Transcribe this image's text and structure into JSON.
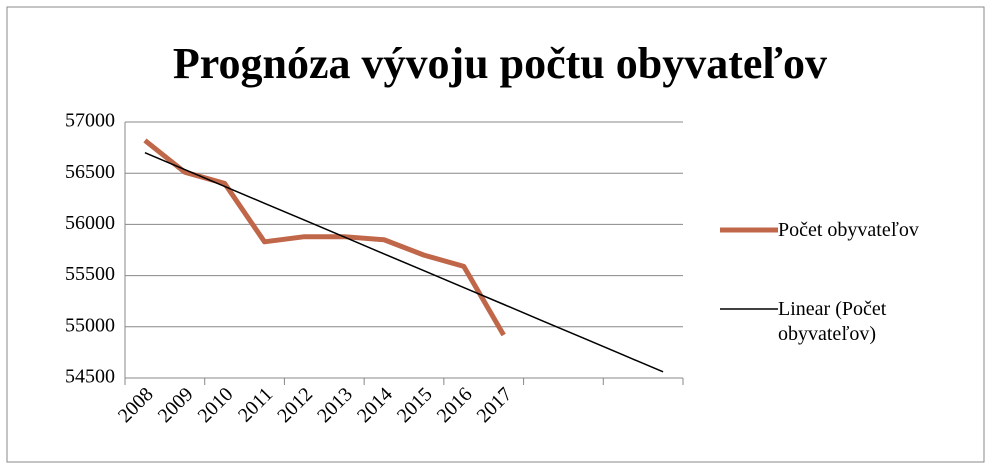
{
  "chart_data": {
    "type": "line",
    "title": "Prognóza vývoju počtu obyvateľov",
    "categories": [
      "2008",
      "2009",
      "2010",
      "2011",
      "2012",
      "2013",
      "2014",
      "2015",
      "2016",
      "2017",
      null,
      null,
      null,
      null
    ],
    "series": [
      {
        "name": "Počet obyvateľov",
        "color": "#c0674a",
        "values": [
          56820,
          56510,
          56400,
          55830,
          55880,
          55880,
          55850,
          55700,
          55590,
          54920,
          null,
          null,
          null,
          null
        ]
      },
      {
        "name": "Linear (Počet obyvateľov)",
        "color": "#000000",
        "values": [
          56700,
          56535,
          56371,
          56206,
          56042,
          55877,
          55712,
          55548,
          55383,
          55219,
          55054,
          54890,
          54725,
          54560
        ]
      }
    ],
    "ylim": [
      54500,
      57000
    ],
    "yticks": [
      54500,
      55000,
      55500,
      56000,
      56500,
      57000
    ],
    "grid": true,
    "legend": "right"
  }
}
